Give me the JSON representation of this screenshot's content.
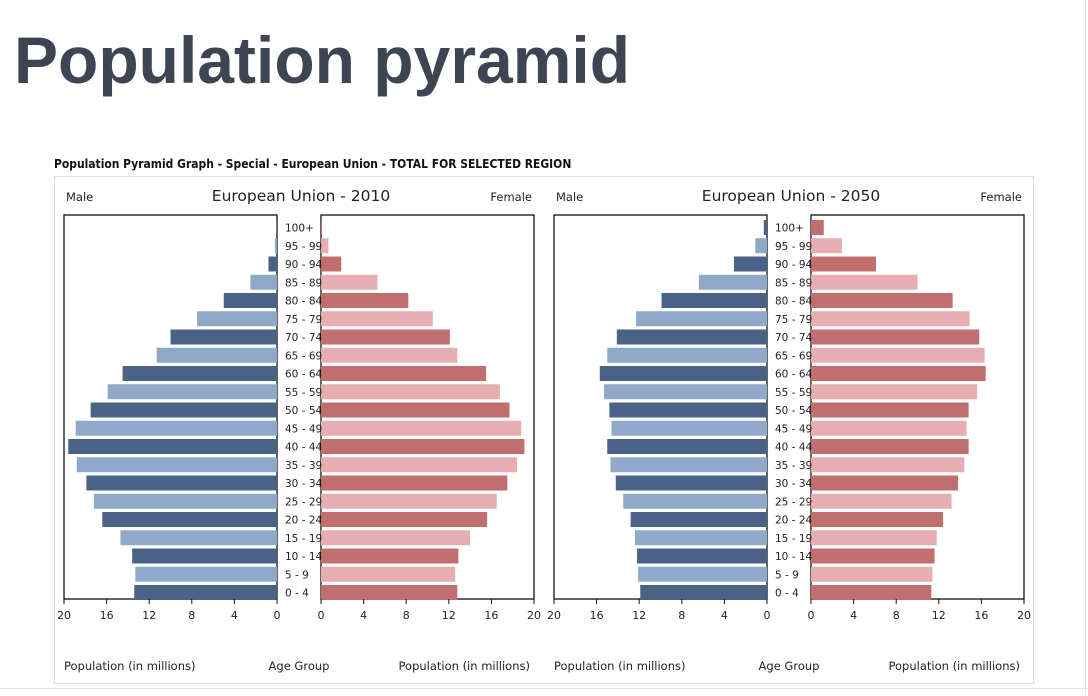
{
  "page": {
    "title": "Population pyramid"
  },
  "figure": {
    "title": "Population Pyramid Graph - Special - European Union - TOTAL FOR SELECTED REGION"
  },
  "colors": {
    "male_dark": "#4b6287",
    "male_light": "#91a9c9",
    "female_dark": "#c06e6e",
    "female_light": "#e6aeb0"
  },
  "chart_data": [
    {
      "type": "bar",
      "orientation": "horizontal-pyramid",
      "title": "European Union - 2010",
      "left_label": "Male",
      "right_label": "Female",
      "xlabel_left": "Population (in millions)",
      "xlabel_center": "Age Group",
      "xlabel_right": "Population (in millions)",
      "xlim": [
        0,
        20
      ],
      "xticks": [
        "20",
        "16",
        "12",
        "8",
        "4",
        "0"
      ],
      "xticks_right": [
        "0",
        "4",
        "8",
        "12",
        "16",
        "20"
      ],
      "categories": [
        "100+",
        "95 - 99",
        "90 - 94",
        "85 - 89",
        "80 - 84",
        "75 - 79",
        "70 - 74",
        "65 - 69",
        "60 - 64",
        "55 - 59",
        "50 - 54",
        "45 - 49",
        "40 - 44",
        "35 - 39",
        "30 - 34",
        "25 - 29",
        "20 - 24",
        "15 - 19",
        "10 - 14",
        "5 - 9",
        "0 - 4"
      ],
      "series": [
        {
          "name": "Male",
          "values": [
            0.02,
            0.2,
            0.8,
            2.5,
            5.0,
            7.5,
            10.0,
            11.3,
            14.5,
            15.9,
            17.5,
            18.9,
            19.6,
            18.8,
            17.9,
            17.2,
            16.4,
            14.7,
            13.6,
            13.3,
            13.4
          ]
        },
        {
          "name": "Female",
          "values": [
            0.1,
            0.7,
            1.9,
            5.3,
            8.2,
            10.5,
            12.1,
            12.8,
            15.5,
            16.8,
            17.7,
            18.8,
            19.1,
            18.4,
            17.5,
            16.5,
            15.6,
            14.0,
            12.9,
            12.6,
            12.8
          ]
        }
      ]
    },
    {
      "type": "bar",
      "orientation": "horizontal-pyramid",
      "title": "European Union - 2050",
      "left_label": "Male",
      "right_label": "Female",
      "xlabel_left": "Population (in millions)",
      "xlabel_center": "Age Group",
      "xlabel_right": "Population (in millions)",
      "xlim": [
        0,
        20
      ],
      "xticks": [
        "20",
        "16",
        "12",
        "8",
        "4",
        "0"
      ],
      "xticks_right": [
        "0",
        "4",
        "8",
        "12",
        "16",
        "20"
      ],
      "categories": [
        "100+",
        "95 - 99",
        "90 - 94",
        "85 - 89",
        "80 - 84",
        "75 - 79",
        "70 - 74",
        "65 - 69",
        "60 - 64",
        "55 - 59",
        "50 - 54",
        "45 - 49",
        "40 - 44",
        "35 - 39",
        "30 - 34",
        "25 - 29",
        "20 - 24",
        "15 - 19",
        "10 - 14",
        "5 - 9",
        "0 - 4"
      ],
      "series": [
        {
          "name": "Male",
          "values": [
            0.3,
            1.1,
            3.1,
            6.4,
            9.9,
            12.3,
            14.1,
            15.0,
            15.7,
            15.3,
            14.8,
            14.6,
            15.0,
            14.7,
            14.2,
            13.5,
            12.8,
            12.4,
            12.2,
            12.1,
            11.9
          ]
        },
        {
          "name": "Female",
          "values": [
            1.2,
            2.9,
            6.1,
            10.0,
            13.3,
            14.9,
            15.8,
            16.3,
            16.4,
            15.6,
            14.8,
            14.6,
            14.8,
            14.4,
            13.8,
            13.2,
            12.4,
            11.8,
            11.6,
            11.4,
            11.3
          ]
        }
      ]
    }
  ]
}
